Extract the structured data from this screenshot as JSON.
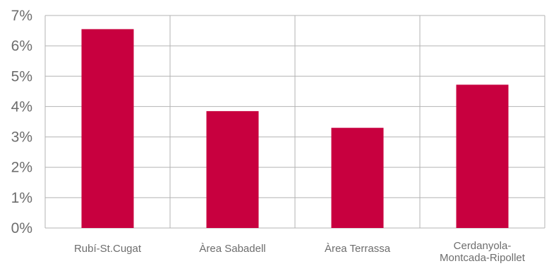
{
  "chart_data": {
    "type": "bar",
    "categories": [
      [
        "Rubí-St.Cugat"
      ],
      [
        "Àrea Sabadell"
      ],
      [
        "Àrea Terrassa"
      ],
      [
        "Cerdanyola-",
        "Montcada-Ripollet"
      ]
    ],
    "values": [
      6.55,
      3.85,
      3.3,
      4.72
    ],
    "ylim": [
      0,
      7
    ],
    "yticks": [
      "0%",
      "1%",
      "2%",
      "3%",
      "4%",
      "5%",
      "6%",
      "7%"
    ],
    "bar_color": "#c8003f",
    "grid": true,
    "legend": "none"
  }
}
